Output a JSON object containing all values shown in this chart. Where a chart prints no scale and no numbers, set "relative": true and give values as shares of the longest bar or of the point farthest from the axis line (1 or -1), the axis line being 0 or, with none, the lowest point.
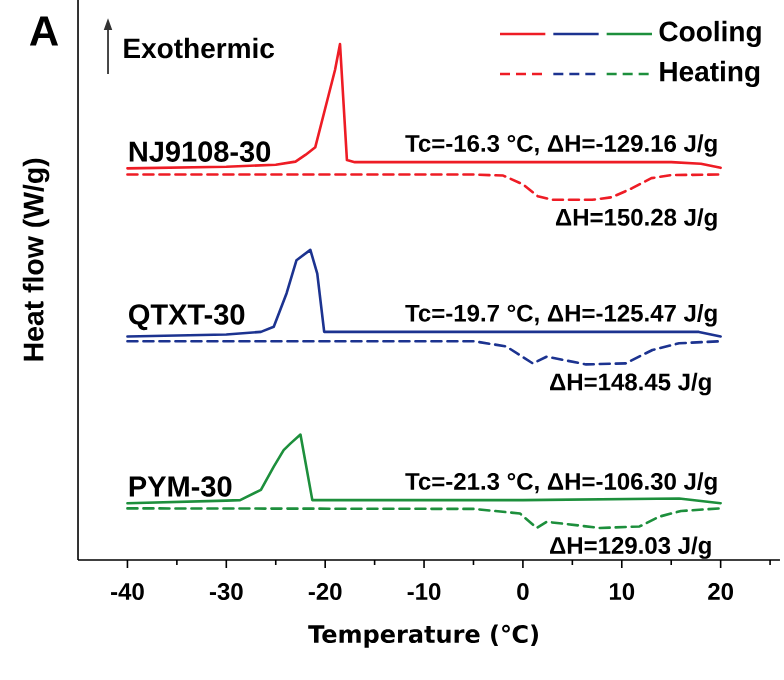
{
  "chart_data": {
    "type": "line",
    "relative": true,
    "xlabel": "Temperature (℃)",
    "ylabel": "Heat flow (W/g)",
    "xlim": [
      -45,
      26
    ],
    "xticks": [
      -40,
      {
        "value": -35,
        "label": null
      },
      -30,
      {
        "value": -25,
        "label": null
      },
      -20,
      {
        "value": -15,
        "label": null
      },
      -10,
      {
        "value": -5,
        "label": null
      },
      0,
      {
        "value": 5,
        "label": null
      },
      10,
      {
        "value": 15,
        "label": null
      },
      20,
      {
        "value": 25,
        "label": null
      }
    ],
    "legend": "top right",
    "series": [
      {
        "color": "#ee1c25",
        "line_style": "solid",
        "x": [
          -40,
          -30,
          -25,
          -23,
          -22,
          -21,
          -20,
          -19,
          -18.5,
          -17.8,
          -17,
          0,
          15,
          18,
          20
        ],
        "values": [
          0.759,
          0.762,
          0.766,
          0.772,
          0.785,
          0.8,
          0.875,
          0.95,
          1.0,
          0.775,
          0.771,
          0.771,
          0.771,
          0.768,
          0.76
        ]
      },
      {
        "color": "#1c3390",
        "line_style": "solid",
        "x": [
          -40,
          -30,
          -26.5,
          -25.2,
          -23.9,
          -22.9,
          -21.5,
          -20.8,
          -20.1,
          0,
          17.8,
          20
        ],
        "values": [
          0.433,
          0.437,
          0.442,
          0.452,
          0.517,
          0.581,
          0.601,
          0.555,
          0.442,
          0.442,
          0.442,
          0.433
        ]
      },
      {
        "name": "Cooling",
        "color": "#1d8f3c",
        "line_style": "solid",
        "x": [
          -40,
          -30,
          -28.6,
          -26.5,
          -25.2,
          -24.2,
          -23.5,
          -22.5,
          -21.3,
          0,
          15.8,
          20
        ],
        "values": [
          0.11,
          0.115,
          0.116,
          0.136,
          0.181,
          0.213,
          0.226,
          0.243,
          0.116,
          0.116,
          0.119,
          0.11
        ]
      },
      {
        "color": "#ee1c25",
        "line_style": "dashed",
        "x": [
          -40,
          -5,
          -2,
          0,
          1.5,
          3,
          7,
          9,
          11,
          13,
          15,
          20
        ],
        "values": [
          0.747,
          0.747,
          0.745,
          0.728,
          0.705,
          0.698,
          0.698,
          0.703,
          0.72,
          0.74,
          0.746,
          0.747
        ]
      },
      {
        "color": "#1c3390",
        "line_style": "dashed",
        "x": [
          -40,
          -5,
          -1.7,
          1,
          2.4,
          6.4,
          10.4,
          13.1,
          15.8,
          20
        ],
        "values": [
          0.424,
          0.424,
          0.414,
          0.381,
          0.394,
          0.379,
          0.381,
          0.407,
          0.42,
          0.424
        ]
      },
      {
        "name": "Heating",
        "color": "#1d8f3c",
        "line_style": "dashed",
        "x": [
          -40,
          -5,
          -0.3,
          1.4,
          2.4,
          7.8,
          11.8,
          13.8,
          16,
          20
        ],
        "values": [
          0.1,
          0.099,
          0.09,
          0.062,
          0.074,
          0.062,
          0.065,
          0.084,
          0.095,
          0.1
        ]
      }
    ],
    "annotations": [
      "A",
      "Exothermic",
      {
        "text": "NJ9108-30",
        "x": -40,
        "y": 0.759
      },
      {
        "text": "Tc=-16.3 °C, ΔH=-129.16 J/g",
        "x": 20,
        "y": 0.771
      },
      {
        "text": "ΔH=150.28 J/g",
        "x": 3,
        "y": 0.698
      },
      {
        "text": "QTXT-30",
        "x": -40,
        "y": 0.433
      },
      {
        "text": "Tc=-19.7 °C, ΔH=-125.47 J/g",
        "x": 20,
        "y": 0.442
      },
      {
        "text": "ΔH=148.45 J/g",
        "x": 2.4,
        "y": 0.394
      },
      {
        "text": "PYM-30",
        "x": -40,
        "y": 0.11
      },
      {
        "text": "Tc=-21.3 °C, ΔH=-106.30 J/g",
        "x": 20,
        "y": 0.116
      },
      {
        "text": "ΔH=129.03 J/g",
        "x": 2.4,
        "y": 0.074
      }
    ]
  }
}
